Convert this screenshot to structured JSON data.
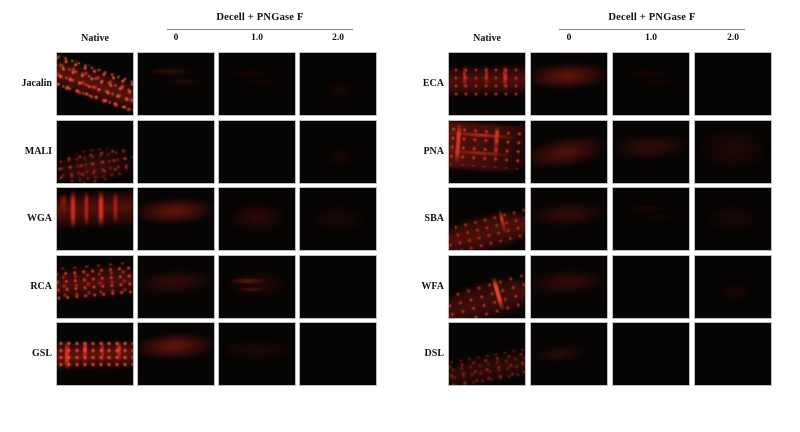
{
  "figure": {
    "description": "Lectin fluorescence staining micrograph grid",
    "colors": {
      "background": "#ffffff",
      "panel_background": "#070404",
      "panel_border": "#bdbdbd",
      "fluorescence_red_bright": "#c23b2b",
      "fluorescence_red_dim": "#3a0e08",
      "text": "#111111",
      "header_line": "#8a8a8a"
    },
    "groups": [
      {
        "treatment_header": "Decell + PNGase F",
        "native_label": "Native",
        "dose_labels": [
          "0",
          "1.0",
          "2.0"
        ],
        "rows": [
          {
            "lectin": "Jacalin",
            "cells": [
              {
                "condition": "Native",
                "signal": "strong",
                "pattern": "jacalin-nat"
              },
              {
                "condition": "0",
                "signal": "weak",
                "pattern": "wisps-faint"
              },
              {
                "condition": "1.0",
                "signal": "trace",
                "pattern": "wisps-vfaint"
              },
              {
                "condition": "2.0",
                "signal": "trace",
                "pattern": "near-black"
              }
            ]
          },
          {
            "lectin": "MALI",
            "cells": [
              {
                "condition": "Native",
                "signal": "moderate",
                "pattern": "mali-nat"
              },
              {
                "condition": "0",
                "signal": "none",
                "pattern": "black"
              },
              {
                "condition": "1.0",
                "signal": "none",
                "pattern": "black"
              },
              {
                "condition": "2.0",
                "signal": "trace",
                "pattern": "near-black"
              }
            ]
          },
          {
            "lectin": "WGA",
            "cells": [
              {
                "condition": "Native",
                "signal": "strong",
                "pattern": "wga-nat"
              },
              {
                "condition": "0",
                "signal": "moderate",
                "pattern": "hband-mid"
              },
              {
                "condition": "1.0",
                "signal": "weak",
                "pattern": "glow-faint"
              },
              {
                "condition": "2.0",
                "signal": "trace",
                "pattern": "glow-vfaint"
              }
            ]
          },
          {
            "lectin": "RCA",
            "cells": [
              {
                "condition": "Native",
                "signal": "strong",
                "pattern": "rca-nat"
              },
              {
                "condition": "0",
                "signal": "weak",
                "pattern": "hband-faint"
              },
              {
                "condition": "1.0",
                "signal": "weak",
                "pattern": "streaks-faint"
              },
              {
                "condition": "2.0",
                "signal": "none",
                "pattern": "black"
              }
            ]
          },
          {
            "lectin": "GSL",
            "cells": [
              {
                "condition": "Native",
                "signal": "strong",
                "pattern": "gsl-nat"
              },
              {
                "condition": "0",
                "signal": "moderate",
                "pattern": "hband-mid"
              },
              {
                "condition": "1.0",
                "signal": "trace",
                "pattern": "hband-vfaint"
              },
              {
                "condition": "2.0",
                "signal": "none",
                "pattern": "black"
              }
            ]
          }
        ]
      },
      {
        "treatment_header": "Decell + PNGase F",
        "native_label": "Native",
        "dose_labels": [
          "0",
          "1.0",
          "2.0"
        ],
        "rows": [
          {
            "lectin": "ECA",
            "cells": [
              {
                "condition": "Native",
                "signal": "moderate",
                "pattern": "eca-nat"
              },
              {
                "condition": "0",
                "signal": "moderate",
                "pattern": "hband-mid"
              },
              {
                "condition": "1.0",
                "signal": "trace",
                "pattern": "wisps-vfaint"
              },
              {
                "condition": "2.0",
                "signal": "none",
                "pattern": "black"
              }
            ]
          },
          {
            "lectin": "PNA",
            "cells": [
              {
                "condition": "Native",
                "signal": "strong",
                "pattern": "pna-nat"
              },
              {
                "condition": "0",
                "signal": "moderate",
                "pattern": "diagband-mid"
              },
              {
                "condition": "1.0",
                "signal": "weak",
                "pattern": "hband-faint"
              },
              {
                "condition": "2.0",
                "signal": "trace",
                "pattern": "glow-wide-vfaint"
              }
            ]
          },
          {
            "lectin": "SBA",
            "cells": [
              {
                "condition": "Native",
                "signal": "moderate",
                "pattern": "sba-nat"
              },
              {
                "condition": "0",
                "signal": "weak",
                "pattern": "hband-faint"
              },
              {
                "condition": "1.0",
                "signal": "trace",
                "pattern": "wisps-vfaint"
              },
              {
                "condition": "2.0",
                "signal": "trace",
                "pattern": "glow-vfaint"
              }
            ]
          },
          {
            "lectin": "WFA",
            "cells": [
              {
                "condition": "Native",
                "signal": "moderate",
                "pattern": "wfa-nat"
              },
              {
                "condition": "0",
                "signal": "weak",
                "pattern": "hband-faint"
              },
              {
                "condition": "1.0",
                "signal": "none",
                "pattern": "black"
              },
              {
                "condition": "2.0",
                "signal": "none",
                "pattern": "near-black"
              }
            ]
          },
          {
            "lectin": "DSL",
            "cells": [
              {
                "condition": "Native",
                "signal": "weak",
                "pattern": "dsl-nat"
              },
              {
                "condition": "0",
                "signal": "weak",
                "pattern": "smallband-faint"
              },
              {
                "condition": "1.0",
                "signal": "none",
                "pattern": "black"
              },
              {
                "condition": "2.0",
                "signal": "none",
                "pattern": "black"
              }
            ]
          }
        ]
      }
    ]
  }
}
